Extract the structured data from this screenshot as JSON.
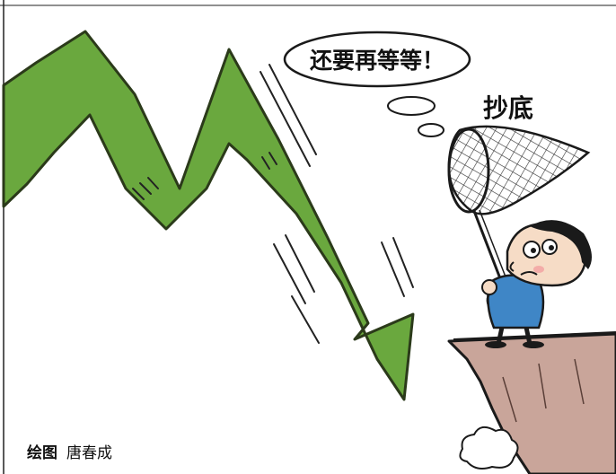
{
  "cartoon": {
    "speech_text": "还要再等等！",
    "net_label": "抄底",
    "caption_label": "绘图",
    "caption_author": "唐春成",
    "colors": {
      "arrow_fill": "#6aa83e",
      "arrow_stroke": "#2b3a1a",
      "cliff_fill": "#c9a59a",
      "shirt_fill": "#3f86c6",
      "skin_fill": "#f6dcc6",
      "outline": "#1a1a1a"
    }
  }
}
